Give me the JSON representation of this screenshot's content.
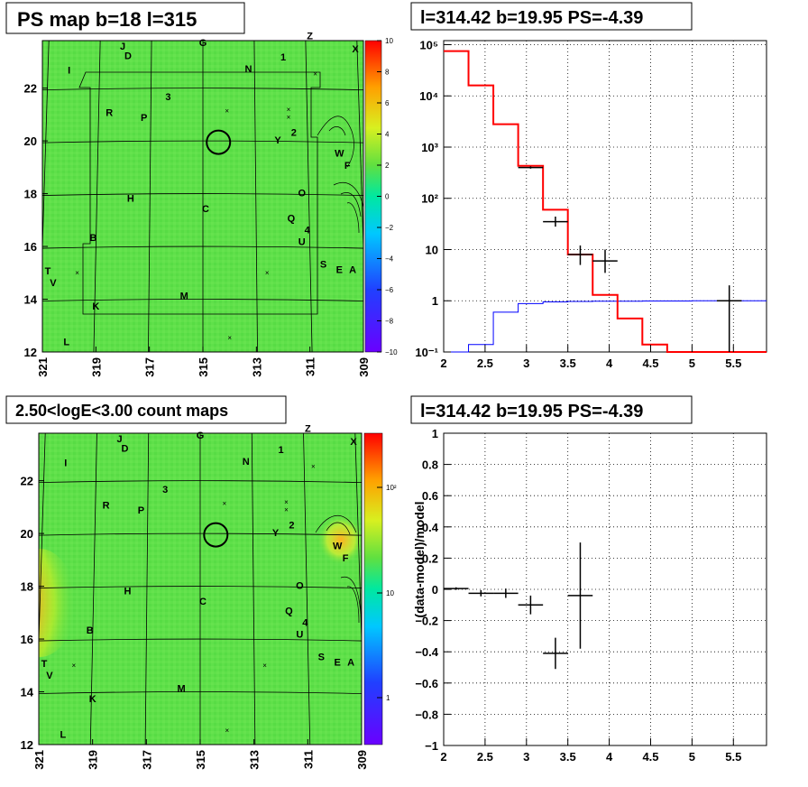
{
  "panels": {
    "tl": {
      "title": "PS map b=18 l=315"
    },
    "tr": {
      "title": "l=314.42 b=19.95 PS=-4.39"
    },
    "bl": {
      "title": "2.50<logE<3.00 count maps"
    },
    "br": {
      "title": "l=314.42 b=19.95 PS=-4.39"
    }
  },
  "colors": {
    "map_bg": "#5fe04a",
    "model_line": "#ff0000",
    "background_line": "#0000ff",
    "data": "#000000",
    "hot": "#ff2a1a"
  },
  "chart_data": [
    {
      "id": "ps_map",
      "type": "heatmap",
      "title": "PS map b=18 l=315",
      "x_ticks": [
        "321",
        "319",
        "317",
        "315",
        "313",
        "311",
        "309"
      ],
      "y_ticks": [
        "12",
        "14",
        "16",
        "18",
        "20",
        "22"
      ],
      "xlim": [
        321,
        309
      ],
      "ylim": [
        12,
        23.8
      ],
      "colorbar_ticks": [
        "10",
        "8",
        "6",
        "4",
        "2",
        "0",
        "−2",
        "−4",
        "−6",
        "−8",
        "−10"
      ],
      "circle": {
        "l": 314.42,
        "b": 19.95
      },
      "source_labels": [
        {
          "t": "Z",
          "l": 311.0,
          "b": 23.85
        },
        {
          "t": "G",
          "l": 315.0,
          "b": 23.6
        },
        {
          "t": "J",
          "l": 318.0,
          "b": 23.45
        },
        {
          "t": "D",
          "l": 317.8,
          "b": 23.1
        },
        {
          "t": "X",
          "l": 309.3,
          "b": 23.35
        },
        {
          "t": "1",
          "l": 312.0,
          "b": 23.05
        },
        {
          "t": "N",
          "l": 313.3,
          "b": 22.6
        },
        {
          "t": "I",
          "l": 320.0,
          "b": 22.55
        },
        {
          "t": "3",
          "l": 316.3,
          "b": 21.55
        },
        {
          "t": "R",
          "l": 318.5,
          "b": 20.95
        },
        {
          "t": "P",
          "l": 317.2,
          "b": 20.75
        },
        {
          "t": "2",
          "l": 311.6,
          "b": 20.2
        },
        {
          "t": "Y",
          "l": 312.2,
          "b": 19.9
        },
        {
          "t": "W",
          "l": 309.9,
          "b": 19.4
        },
        {
          "t": "F",
          "l": 309.6,
          "b": 18.95
        },
        {
          "t": "O",
          "l": 311.3,
          "b": 17.9
        },
        {
          "t": "H",
          "l": 317.7,
          "b": 17.7
        },
        {
          "t": "C",
          "l": 314.9,
          "b": 17.3
        },
        {
          "t": "Q",
          "l": 311.7,
          "b": 16.95
        },
        {
          "t": "4",
          "l": 311.1,
          "b": 16.5
        },
        {
          "t": "U",
          "l": 311.3,
          "b": 16.05
        },
        {
          "t": "B",
          "l": 319.1,
          "b": 16.2
        },
        {
          "t": "S",
          "l": 310.5,
          "b": 15.2
        },
        {
          "t": "E",
          "l": 309.9,
          "b": 15.0
        },
        {
          "t": "A",
          "l": 309.4,
          "b": 15.0
        },
        {
          "t": "T",
          "l": 320.8,
          "b": 14.95
        },
        {
          "t": "V",
          "l": 320.6,
          "b": 14.5
        },
        {
          "t": "M",
          "l": 315.7,
          "b": 14.0
        },
        {
          "t": "K",
          "l": 319.0,
          "b": 13.6
        },
        {
          "t": "L",
          "l": 320.1,
          "b": 12.25
        }
      ],
      "x_marks": [
        {
          "l": 310.8,
          "b": 22.45
        },
        {
          "l": 314.1,
          "b": 21.05
        },
        {
          "l": 311.8,
          "b": 21.1
        },
        {
          "l": 311.8,
          "b": 20.8
        },
        {
          "l": 319.7,
          "b": 14.9
        },
        {
          "l": 312.6,
          "b": 14.9
        },
        {
          "l": 314.0,
          "b": 12.45
        }
      ]
    },
    {
      "id": "spectrum",
      "type": "line",
      "title": "l=314.42 b=19.95 PS=-4.39",
      "x_ticks": [
        "2",
        "2.5",
        "3",
        "3.5",
        "4",
        "4.5",
        "5",
        "5.5"
      ],
      "y_ticks": [
        "10⁻¹",
        "1",
        "10",
        "10²",
        "10³",
        "10⁴",
        "10⁵"
      ],
      "xlim": [
        2,
        5.9
      ],
      "ylim": [
        0.1,
        120000
      ],
      "log_y": true,
      "grid": true,
      "x_tick_values": [
        2,
        2.5,
        3,
        3.5,
        4,
        4.5,
        5,
        5.5
      ],
      "y_tick_values": [
        0.1,
        1,
        10,
        100,
        1000,
        10000,
        100000
      ],
      "bin_edges": [
        2.0,
        2.3,
        2.6,
        2.9,
        3.2,
        3.5,
        3.8,
        4.1,
        4.4,
        4.7,
        5.0,
        5.3,
        5.6,
        5.9
      ],
      "series": [
        {
          "id": "model",
          "values": [
            75000,
            16000,
            2800,
            430,
            60,
            8,
            1.3,
            0.45,
            0.14,
            0.1,
            0.1,
            0.1,
            0.1
          ]
        },
        {
          "id": "background",
          "values": [
            0.1,
            0.14,
            0.6,
            0.88,
            0.95,
            0.97,
            0.98,
            0.98,
            0.99,
            0.99,
            1.0,
            1.0,
            1.0
          ]
        }
      ],
      "data_points": [
        {
          "x": 3.05,
          "y": 400,
          "xerr": 0.15,
          "ylo": 380,
          "yhi": 420
        },
        {
          "x": 3.35,
          "y": 35,
          "xerr": 0.15,
          "ylo": 28,
          "yhi": 44
        },
        {
          "x": 3.65,
          "y": 8,
          "xerr": 0.15,
          "ylo": 5,
          "yhi": 12
        },
        {
          "x": 3.95,
          "y": 6,
          "xerr": 0.15,
          "ylo": 3.5,
          "yhi": 10
        },
        {
          "x": 5.45,
          "y": 1,
          "xerr": 0.15,
          "ylo": 0.1,
          "yhi": 2
        }
      ]
    },
    {
      "id": "count_map",
      "type": "heatmap",
      "title": "2.50<logE<3.00 count maps",
      "x_ticks": [
        "321",
        "319",
        "317",
        "315",
        "313",
        "311",
        "309"
      ],
      "y_ticks": [
        "12",
        "14",
        "16",
        "18",
        "20",
        "22"
      ],
      "xlim": [
        321,
        309
      ],
      "ylim": [
        12,
        23.8
      ],
      "colorbar_ticks": [
        "10²",
        "10",
        "1"
      ],
      "circle": {
        "l": 314.42,
        "b": 19.95
      }
    },
    {
      "id": "residual",
      "type": "scatter",
      "title": "l=314.42 b=19.95 PS=-4.39",
      "ylabel": "(data-model)/model",
      "x_ticks": [
        "2",
        "2.5",
        "3",
        "3.5",
        "4",
        "4.5",
        "5",
        "5.5"
      ],
      "y_ticks": [
        "−1",
        "−0.8",
        "−0.6",
        "−0.4",
        "−0.2",
        "0",
        "0.2",
        "0.4",
        "0.6",
        "0.8",
        "1"
      ],
      "x_tick_values": [
        2,
        2.5,
        3,
        3.5,
        4,
        4.5,
        5,
        5.5
      ],
      "y_tick_values": [
        -1,
        -0.8,
        -0.6,
        -0.4,
        -0.2,
        0,
        0.2,
        0.4,
        0.6,
        0.8,
        1
      ],
      "xlim": [
        2,
        5.9
      ],
      "ylim": [
        -1,
        1
      ],
      "grid": true,
      "data_points": [
        {
          "x": 2.15,
          "y": 0.005,
          "xerr": 0.15,
          "yerr": 0.008
        },
        {
          "x": 2.45,
          "y": -0.025,
          "xerr": 0.15,
          "yerr": 0.02
        },
        {
          "x": 2.75,
          "y": -0.025,
          "xerr": 0.15,
          "yerr": 0.03
        },
        {
          "x": 3.05,
          "y": -0.1,
          "xerr": 0.15,
          "yerr": 0.06
        },
        {
          "x": 3.35,
          "y": -0.41,
          "xerr": 0.15,
          "yerr": 0.1
        },
        {
          "x": 3.65,
          "y": -0.04,
          "xerr": 0.15,
          "yerr": 0.34
        }
      ]
    }
  ]
}
